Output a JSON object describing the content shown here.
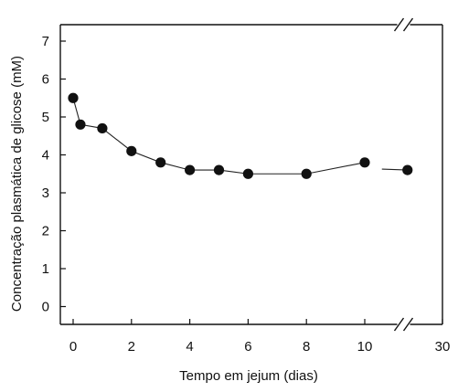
{
  "chart_data": {
    "type": "line",
    "title": "",
    "xlabel": "Tempo em jejum (dias)",
    "ylabel": "Concentração plasmática de glicose (mM)",
    "xlim": [
      -0.5,
      30
    ],
    "ylim": [
      -0.5,
      7.5
    ],
    "x_axis_break": {
      "after": 10,
      "before": 30
    },
    "x_ticks": [
      "0",
      "2",
      "4",
      "6",
      "8",
      "10",
      "30"
    ],
    "y_ticks": [
      "0",
      "1",
      "2",
      "3",
      "4",
      "5",
      "6",
      "7"
    ],
    "grid": false,
    "series": [
      {
        "x": [
          0,
          0.25,
          1,
          2,
          3,
          4,
          5,
          6,
          8,
          10
        ],
        "y": [
          5.5,
          4.8,
          4.7,
          4.1,
          3.8,
          3.6,
          3.6,
          3.5,
          3.5,
          3.8
        ]
      },
      {
        "x": [
          21
        ],
        "y": [
          3.6
        ]
      }
    ]
  }
}
